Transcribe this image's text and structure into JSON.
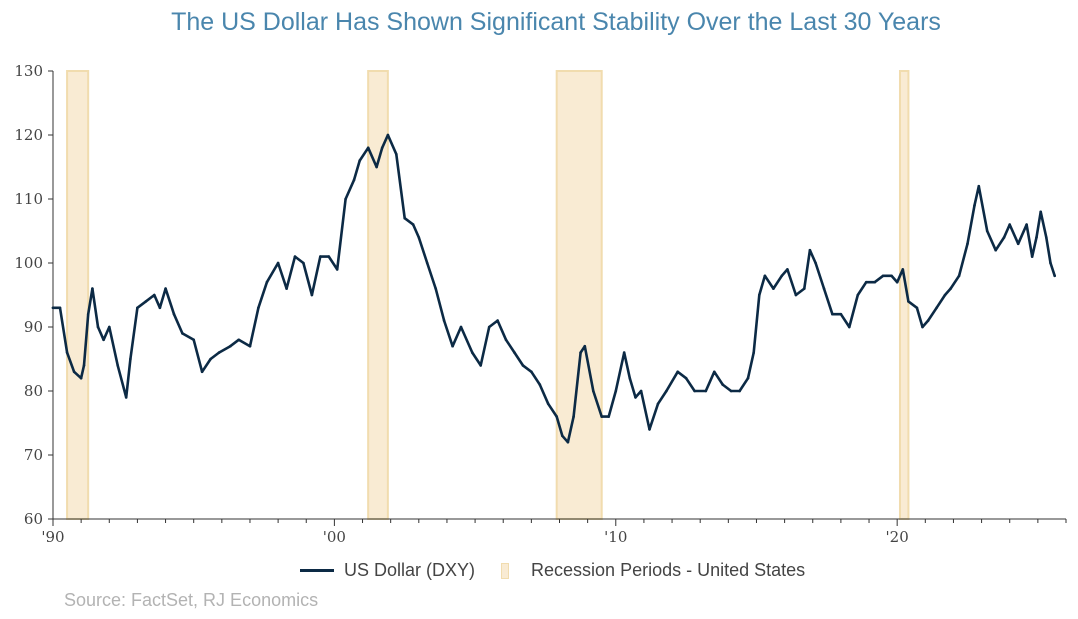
{
  "chart_data": {
    "type": "line",
    "title": "The US Dollar Has Shown Significant Stability Over the Last 30 Years",
    "source": "Source: FactSet, RJ Economics",
    "xlabel": "",
    "ylabel": "",
    "xlim": [
      1990,
      2026
    ],
    "ylim": [
      60,
      130
    ],
    "y_ticks": [
      60,
      70,
      80,
      90,
      100,
      110,
      120,
      130
    ],
    "x_ticks": [
      {
        "value": 1990,
        "label": "'90"
      },
      {
        "value": 2000,
        "label": "'00"
      },
      {
        "value": 2010,
        "label": "'10"
      },
      {
        "value": 2020,
        "label": "'20"
      }
    ],
    "grid": false,
    "legend_position": "bottom",
    "colors": {
      "line": "#0c2a45",
      "recession_fill": "#f9ebd3",
      "recession_edge": "#f1dcae",
      "title": "#4a86ad"
    },
    "recessions": {
      "name": "Recession Periods - United States",
      "periods": [
        [
          1990.5,
          1991.25
        ],
        [
          2001.2,
          2001.9
        ],
        [
          2007.9,
          2009.5
        ],
        [
          2020.1,
          2020.4
        ]
      ]
    },
    "series": [
      {
        "name": "US Dollar (DXY)",
        "x": [
          1990.0,
          1990.25,
          1990.5,
          1990.75,
          1991.0,
          1991.1,
          1991.25,
          1991.4,
          1991.6,
          1991.8,
          1992.0,
          1992.3,
          1992.6,
          1992.75,
          1993.0,
          1993.3,
          1993.6,
          1993.8,
          1994.0,
          1994.3,
          1994.6,
          1995.0,
          1995.3,
          1995.6,
          1995.9,
          1996.3,
          1996.6,
          1997.0,
          1997.3,
          1997.6,
          1998.0,
          1998.3,
          1998.6,
          1998.9,
          1999.2,
          1999.5,
          1999.8,
          2000.1,
          2000.4,
          2000.7,
          2000.9,
          2001.2,
          2001.5,
          2001.7,
          2001.9,
          2002.2,
          2002.5,
          2002.8,
          2003.0,
          2003.3,
          2003.6,
          2003.9,
          2004.2,
          2004.5,
          2004.9,
          2005.2,
          2005.5,
          2005.8,
          2006.1,
          2006.4,
          2006.7,
          2007.0,
          2007.3,
          2007.6,
          2007.9,
          2008.1,
          2008.3,
          2008.5,
          2008.75,
          2008.9,
          2009.2,
          2009.5,
          2009.75,
          2010.0,
          2010.3,
          2010.5,
          2010.7,
          2010.9,
          2011.2,
          2011.5,
          2011.8,
          2012.2,
          2012.5,
          2012.8,
          2013.2,
          2013.5,
          2013.8,
          2014.1,
          2014.4,
          2014.7,
          2014.9,
          2015.1,
          2015.3,
          2015.6,
          2015.9,
          2016.1,
          2016.4,
          2016.7,
          2016.9,
          2017.1,
          2017.4,
          2017.7,
          2018.0,
          2018.3,
          2018.6,
          2018.9,
          2019.2,
          2019.5,
          2019.8,
          2020.0,
          2020.2,
          2020.4,
          2020.7,
          2020.9,
          2021.1,
          2021.4,
          2021.7,
          2021.9,
          2022.2,
          2022.5,
          2022.75,
          2022.9,
          2023.2,
          2023.5,
          2023.8,
          2024.0,
          2024.3,
          2024.6,
          2024.8,
          2024.95,
          2025.1,
          2025.3,
          2025.45,
          2025.6
        ],
        "values": [
          93,
          93,
          86,
          83,
          82,
          84,
          92,
          96,
          90,
          88,
          90,
          84,
          79,
          85,
          93,
          94,
          95,
          93,
          96,
          92,
          89,
          88,
          83,
          85,
          86,
          87,
          88,
          87,
          93,
          97,
          100,
          96,
          101,
          100,
          95,
          101,
          101,
          99,
          110,
          113,
          116,
          118,
          115,
          118,
          120,
          117,
          107,
          106,
          104,
          100,
          96,
          91,
          87,
          90,
          86,
          84,
          90,
          91,
          88,
          86,
          84,
          83,
          81,
          78,
          76,
          73,
          72,
          76,
          86,
          87,
          80,
          76,
          76,
          80,
          86,
          82,
          79,
          80,
          74,
          78,
          80,
          83,
          82,
          80,
          80,
          83,
          81,
          80,
          80,
          82,
          86,
          95,
          98,
          96,
          98,
          99,
          95,
          96,
          102,
          100,
          96,
          92,
          92,
          90,
          95,
          97,
          97,
          98,
          98,
          97,
          99,
          94,
          93,
          90,
          91,
          93,
          95,
          96,
          98,
          103,
          109,
          112,
          105,
          102,
          104,
          106,
          103,
          106,
          101,
          104,
          108,
          104,
          100,
          98
        ]
      }
    ]
  }
}
